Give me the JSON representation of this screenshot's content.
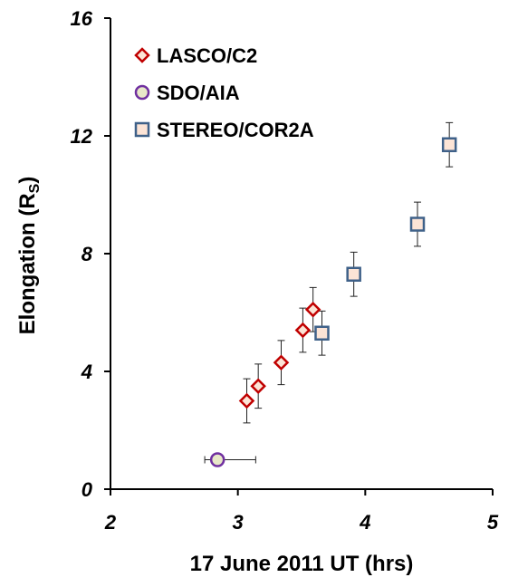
{
  "chart_data": {
    "type": "scatter",
    "title": "",
    "xlabel": "17 June 2011 UT (hrs)",
    "ylabel_main": "Elongation (R",
    "ylabel_sub": "S",
    "ylabel_close": ")",
    "xlim": [
      2,
      5
    ],
    "ylim": [
      0,
      16
    ],
    "xticks": [
      2,
      3,
      4,
      5
    ],
    "yticks": [
      0,
      4,
      8,
      12,
      16
    ],
    "legend_position": "top-left",
    "series": [
      {
        "name": "LASCO/C2",
        "marker": "diamond",
        "edge_color": "#C00000",
        "fill_color": "#FCE4D6",
        "points": [
          {
            "x": 3.07,
            "y": 3.0,
            "yerr": 0.75
          },
          {
            "x": 3.16,
            "y": 3.5,
            "yerr": 0.75
          },
          {
            "x": 3.34,
            "y": 4.3,
            "yerr": 0.75
          },
          {
            "x": 3.51,
            "y": 5.4,
            "yerr": 0.75
          },
          {
            "x": 3.59,
            "y": 6.1,
            "yerr": 0.75
          }
        ]
      },
      {
        "name": "SDO/AIA",
        "marker": "circle",
        "edge_color": "#7030A0",
        "fill_color": "#E8E8C8",
        "points": [
          {
            "x": 2.84,
            "y": 1.0,
            "xerr_low": 0.1,
            "xerr_high": 0.3
          }
        ]
      },
      {
        "name": "STEREO/COR2A",
        "marker": "square",
        "edge_color": "#3F6189",
        "fill_color": "#FCE4D6",
        "points": [
          {
            "x": 3.66,
            "y": 5.3,
            "yerr": 0.75
          },
          {
            "x": 3.91,
            "y": 7.3,
            "yerr": 0.75
          },
          {
            "x": 4.41,
            "y": 9.0,
            "yerr": 0.75
          },
          {
            "x": 4.66,
            "y": 11.7,
            "yerr": 0.75
          }
        ]
      }
    ]
  }
}
